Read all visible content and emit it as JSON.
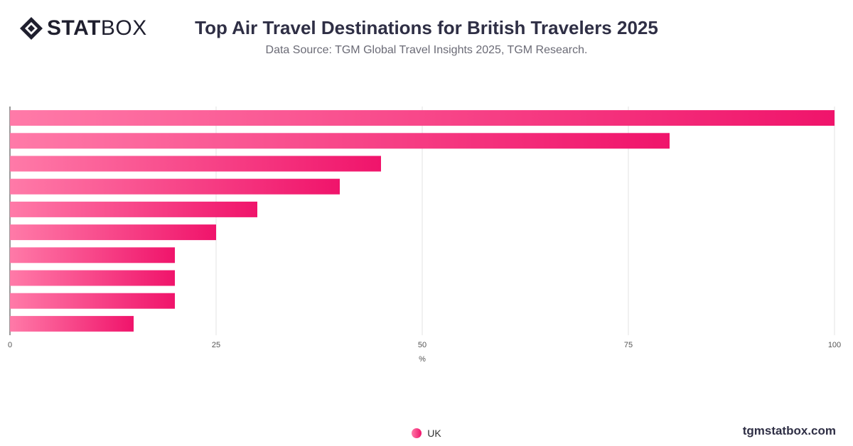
{
  "brand": {
    "logo_bold": "STAT",
    "logo_light": "BOX",
    "watermark": "tgmstatbox.com"
  },
  "header": {
    "title": "Top Air Travel Destinations for British Travelers 2025",
    "subtitle": "Data Source: TGM Global Travel Insights 2025, TGM Research."
  },
  "colors": {
    "bar_start": "#ff7aa8",
    "bar_end": "#f0146b",
    "grid": "#e3e3e3",
    "axis": "#333333"
  },
  "chart_data": {
    "type": "bar",
    "orientation": "horizontal",
    "categories": [
      "",
      "",
      "",
      "",
      "",
      "",
      "",
      "",
      "",
      ""
    ],
    "series": [
      {
        "name": "UK",
        "values": [
          100,
          80,
          45,
          40,
          30,
          25,
          20,
          20,
          20,
          15
        ]
      }
    ],
    "xlabel": "%",
    "xlim": [
      0,
      100
    ],
    "xticks": [
      0,
      25,
      50,
      75,
      100
    ],
    "grid": true,
    "legend": "bottom-center"
  }
}
